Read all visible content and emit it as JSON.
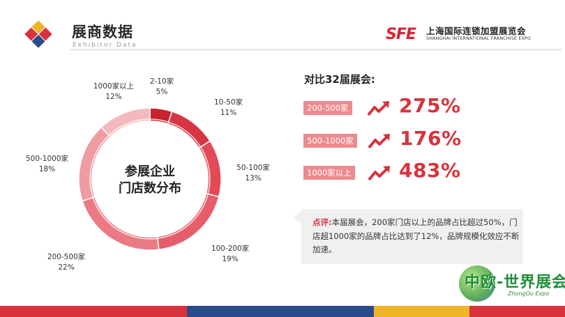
{
  "header": {
    "title": "展商数据",
    "subtitle": "Exhibitor Data",
    "brand_mark": "SFE",
    "brand_cn": "上海国际连锁加盟展览会",
    "brand_en": "SHANGHAI INTERNATIONAL FRANCHISE EXPO"
  },
  "chart_data": {
    "type": "pie",
    "variant": "donut",
    "title": "参展企业门店数分布",
    "title_lines": [
      "参展企业",
      "门店数分布"
    ],
    "categories": [
      "2-10家",
      "10-50家",
      "50-100家",
      "100-200家",
      "200-500家",
      "500-1000家",
      "1000家以上"
    ],
    "values": [
      5,
      11,
      13,
      19,
      22,
      18,
      12
    ],
    "value_labels": [
      "5%",
      "11%",
      "13%",
      "19%",
      "22%",
      "18%",
      "12%"
    ],
    "colors": [
      "#c8222c",
      "#d83644",
      "#e24a58",
      "#e65e6b",
      "#ec7a85",
      "#f09aa2",
      "#f4b9be"
    ]
  },
  "comparison": {
    "title": "对比32届展会:",
    "rows": [
      {
        "tag": "200-500家",
        "value": "275%"
      },
      {
        "tag": "500-1000家",
        "value": "176%"
      },
      {
        "tag": "1000家以上",
        "value": "483%"
      }
    ],
    "arrow_icon": "trend-up-arrow-icon",
    "accent": "#d8333c",
    "tag_color": "#ec8a8e"
  },
  "note": {
    "head": "点评:",
    "body": "本届展会，200家门店以上的品牌占比超过50%，门店超1000家的品牌占比达到了12%，品牌规模化效应不断加速。"
  },
  "watermark": {
    "text": "中欧-世界展会",
    "sub": "ZhongOu Expo"
  },
  "footer_colors": [
    "#d8333c",
    "#2b4a8a",
    "#f0b429",
    "#d8333c"
  ]
}
